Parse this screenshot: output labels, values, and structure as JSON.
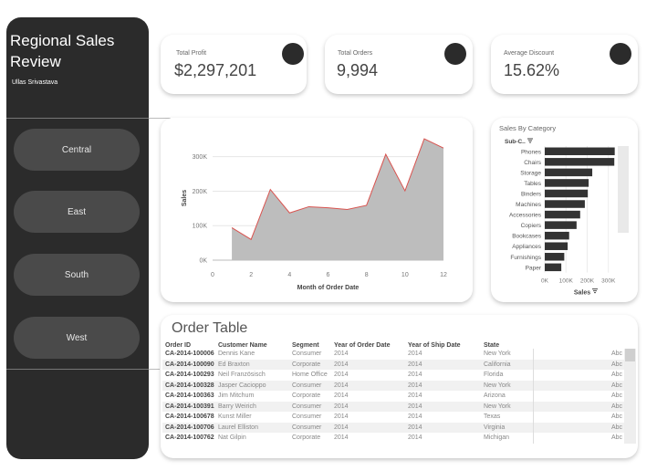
{
  "sidebar": {
    "title": "Regional Sales Review",
    "author": "Ullas Srivastava",
    "regions": [
      "Central",
      "East",
      "South",
      "West"
    ]
  },
  "kpis": [
    {
      "label": "Total Profit",
      "value": "$2,297,201"
    },
    {
      "label": "Total Orders",
      "value": "9,994"
    },
    {
      "label": "Average Discount",
      "value": "15.62%"
    }
  ],
  "chart_data": [
    {
      "type": "area",
      "xlabel": "Month of Order Date",
      "ylabel": "Sales",
      "x": [
        1,
        2,
        3,
        4,
        5,
        6,
        7,
        8,
        9,
        10,
        11,
        12
      ],
      "values": [
        94000,
        60000,
        205000,
        137000,
        155000,
        152000,
        147000,
        159000,
        307000,
        201000,
        352000,
        325000
      ],
      "xticks": [
        0,
        2,
        4,
        6,
        8,
        10,
        12
      ],
      "yticks": [
        0,
        100000,
        200000,
        300000
      ],
      "ytick_labels": [
        "0K",
        "100K",
        "200K",
        "300K"
      ],
      "xlim": [
        0,
        12
      ],
      "ylim": [
        0,
        360000
      ],
      "fill_color": "#bdbdbd",
      "line_color": "#d9534f"
    },
    {
      "type": "bar",
      "title": "Sales By Category",
      "category_header": "Sub-C..",
      "xlabel": "Sales",
      "categories": [
        "Phones",
        "Chairs",
        "Storage",
        "Tables",
        "Binders",
        "Machines",
        "Accessories",
        "Copiers",
        "Bookcases",
        "Appliances",
        "Furnishings",
        "Paper"
      ],
      "values": [
        330000,
        328000,
        224000,
        207000,
        203000,
        189000,
        167000,
        150000,
        115000,
        108000,
        92000,
        78000
      ],
      "xticks": [
        0,
        100000,
        200000,
        300000
      ],
      "xtick_labels": [
        "0K",
        "100K",
        "200K",
        "300K"
      ],
      "xlim": [
        0,
        340000
      ],
      "bar_color": "#333333"
    }
  ],
  "order_table": {
    "title": "Order Table",
    "columns": [
      "Order ID",
      "Customer Name",
      "Segment",
      "Year of Order Date",
      "Year of Ship Date",
      "State"
    ],
    "rows": [
      [
        "CA-2014-100006",
        "Dennis Kane",
        "Consumer",
        "2014",
        "2014",
        "New York",
        "Abc"
      ],
      [
        "CA-2014-100090",
        "Ed Braxton",
        "Corporate",
        "2014",
        "2014",
        "California",
        "Abc"
      ],
      [
        "CA-2014-100293",
        "Neil Französisch",
        "Home Office",
        "2014",
        "2014",
        "Florida",
        "Abc"
      ],
      [
        "CA-2014-100328",
        "Jasper Cacioppo",
        "Consumer",
        "2014",
        "2014",
        "New York",
        "Abc"
      ],
      [
        "CA-2014-100363",
        "Jim Mitchum",
        "Corporate",
        "2014",
        "2014",
        "Arizona",
        "Abc"
      ],
      [
        "CA-2014-100391",
        "Barry Weirich",
        "Consumer",
        "2014",
        "2014",
        "New York",
        "Abc"
      ],
      [
        "CA-2014-100678",
        "Kunst Miller",
        "Consumer",
        "2014",
        "2014",
        "Texas",
        "Abc"
      ],
      [
        "CA-2014-100706",
        "Laurel Elliston",
        "Consumer",
        "2014",
        "2014",
        "Virginia",
        "Abc"
      ],
      [
        "CA-2014-100762",
        "Nat Gilpin",
        "Corporate",
        "2014",
        "2014",
        "Michigan",
        "Abc"
      ]
    ]
  }
}
